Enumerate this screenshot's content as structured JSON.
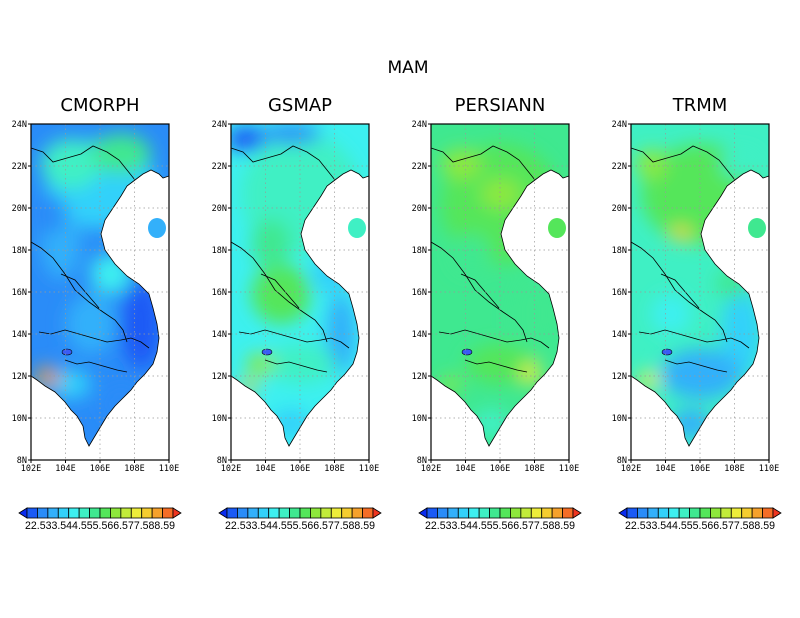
{
  "figure": {
    "supertitle": "MAM"
  },
  "panels": [
    {
      "title": "CMORPH"
    },
    {
      "title": "GSMAP"
    },
    {
      "title": "PERSIANN"
    },
    {
      "title": "TRMM"
    }
  ],
  "axes": {
    "lon_ticks": [
      "102E",
      "104E",
      "106E",
      "108E",
      "110E"
    ],
    "lat_ticks": [
      "24N",
      "22N",
      "20N",
      "18N",
      "16N",
      "14N",
      "12N",
      "10N",
      "8N"
    ],
    "lon_range": [
      102,
      110
    ],
    "lat_range": [
      8,
      24
    ],
    "gridlines": "dotted"
  },
  "colorbar": {
    "tick_labels": [
      "2",
      "2.5",
      "3",
      "3.5",
      "4",
      "4.5",
      "5",
      "5.5",
      "6",
      "6.5",
      "7",
      "7.5",
      "8",
      "8.5",
      "9"
    ],
    "label_text": "22.533.544.555.566.577.588.59",
    "colors": [
      "#0a2bf0",
      "#1a5af5",
      "#2a8cf8",
      "#33b0fa",
      "#33d1fa",
      "#3df0f0",
      "#3ff0c4",
      "#3fe890",
      "#54e65a",
      "#8ee83c",
      "#c2ec3a",
      "#eded3a",
      "#f5cd30",
      "#f5a12c",
      "#f56d26",
      "#ee3520"
    ],
    "extend": "both"
  },
  "legend": {
    "placement": "below-each-panel"
  }
}
